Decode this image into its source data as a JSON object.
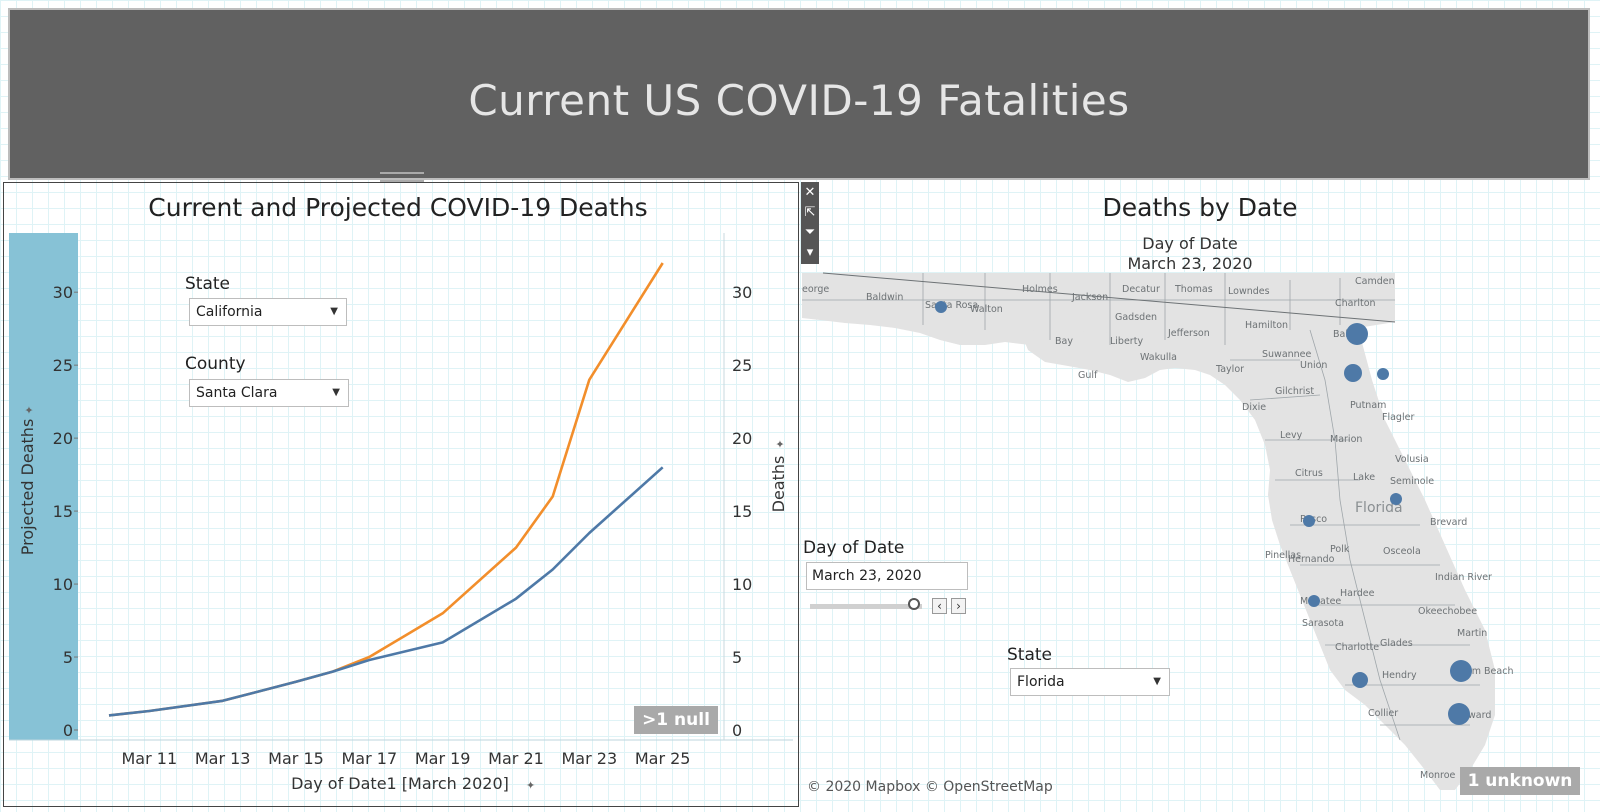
{
  "header": {
    "title": "Current US COVID-19 Fatalities"
  },
  "left_panel": {
    "title": "Current and Projected COVID-19 Deaths",
    "state_filter": {
      "label": "State",
      "value": "California"
    },
    "county_filter": {
      "label": "County",
      "value": "Santa Clara"
    },
    "null_badge": ">1 null"
  },
  "right_panel": {
    "title": "Deaths by Date",
    "map_subtitle_label": "Day of Date",
    "map_subtitle_value": "March 23, 2020",
    "date_slider": {
      "label": "Day of Date",
      "value": "March 23, 2020"
    },
    "state_filter": {
      "label": "State",
      "value": "Florida"
    },
    "attribution": "© 2020 Mapbox © OpenStreetMap",
    "unknown_badge": "1 unknown",
    "land_color": "#e3e3e3",
    "bubble_color": "#4e79a7"
  },
  "toolbar": {
    "icons": [
      "close-icon",
      "pop-out-icon",
      "filter-icon",
      "more-options-icon"
    ]
  },
  "chart_data": [
    {
      "type": "line",
      "xlabel": "Day of Date1 [March 2020]",
      "ylabel": "Projected Deaths",
      "y2label": "Deaths",
      "x_tick_labels": [
        "Mar 11",
        "Mar 13",
        "Mar 15",
        "Mar 17",
        "Mar 19",
        "Mar 21",
        "Mar 23",
        "Mar 25"
      ],
      "x_ticks": [
        11,
        13,
        15,
        17,
        19,
        21,
        23,
        25
      ],
      "xlim": [
        9.9,
        26.7
      ],
      "ylim": [
        0,
        32
      ],
      "y_ticks": [
        0,
        5,
        10,
        15,
        20,
        25,
        30
      ],
      "grid": false,
      "series": [
        {
          "color": "#f28e2b",
          "axis": "left",
          "x": [
            9.9,
            11,
            13,
            15,
            16,
            17,
            19,
            21,
            22,
            23,
            25
          ],
          "values": [
            1,
            1.3,
            2,
            3.3,
            4,
            5,
            8,
            12.5,
            16,
            24,
            32
          ]
        },
        {
          "color": "#4e79a7",
          "axis": "right",
          "x": [
            9.9,
            11,
            13,
            15,
            16,
            17,
            19,
            21,
            22,
            23,
            25
          ],
          "values": [
            1,
            1.3,
            2,
            3.3,
            4,
            4.8,
            6,
            9,
            11,
            13.5,
            18
          ]
        }
      ]
    },
    {
      "type": "scatter",
      "marks": "proportional bubbles on state map",
      "size_field": "Deaths",
      "place_labels": [
        "eorge",
        "Baldwin",
        "Santa Rosa",
        "Walton",
        "Holmes",
        "Jackson",
        "Decatur",
        "Thomas",
        "Lowndes",
        "Camden",
        "Charlton",
        "Gadsden",
        "Jefferson",
        "Hamilton",
        "Baker",
        "Bay",
        "Liberty",
        "Wakulla",
        "Suwannee",
        "Gulf",
        "Taylor",
        "Union",
        "Gilchrist",
        "Putnam",
        "Flagler",
        "Dixie",
        "Levy",
        "Marion",
        "Volusia",
        "Citrus",
        "Lake",
        "Seminole",
        "Florida",
        "Pasco",
        "Brevard",
        "Pinellas",
        "Polk",
        "Osceola",
        "Hernando",
        "Indian River",
        "Hardee",
        "Okeechobee",
        "Manatee",
        "Sarasota",
        "Martin",
        "Charlotte",
        "Glades",
        "Hendry",
        "Palm Beach",
        "Collier",
        "Broward",
        "Monroe"
      ]
    }
  ]
}
